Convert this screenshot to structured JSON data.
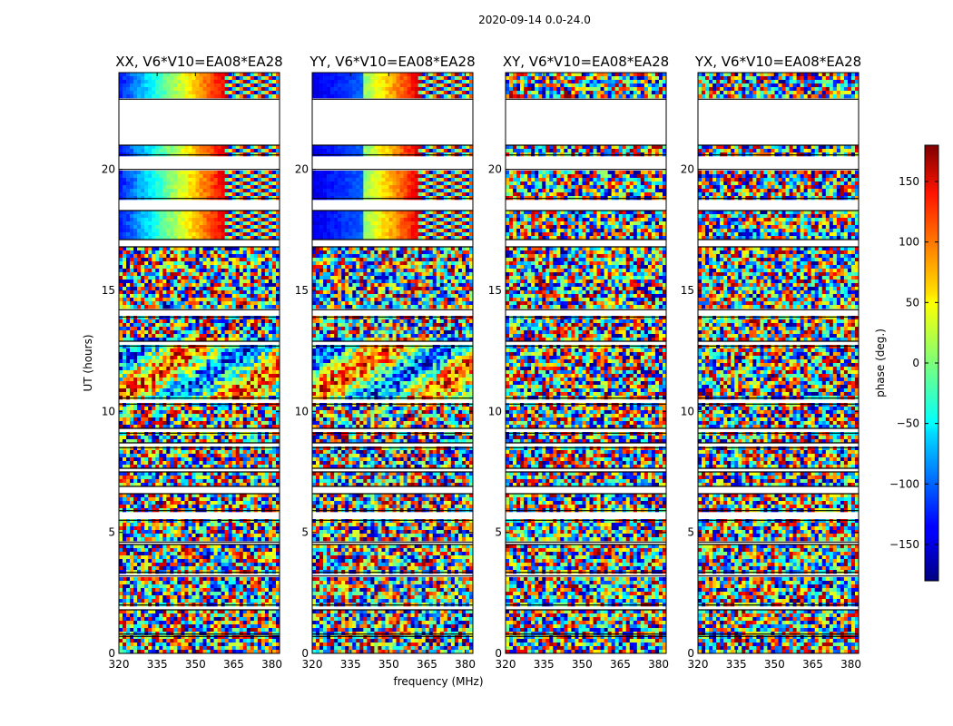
{
  "chart_data": {
    "type": "heatmap",
    "suptitle": "2020-09-14 0.0-24.0",
    "xlabel": "frequency (MHz)",
    "ylabel": "UT (hours)",
    "xlim": [
      320,
      383
    ],
    "ylim": [
      0,
      24
    ],
    "xticks": [
      "320",
      "335",
      "350",
      "365",
      "380"
    ],
    "yticks": [
      "0",
      "5",
      "10",
      "15",
      "20"
    ],
    "colorbar": {
      "label": "phase (deg.)",
      "range": [
        -180,
        180
      ],
      "ticks": [
        "150",
        "100",
        "50",
        "0",
        "−50",
        "−100",
        "−150"
      ],
      "colormap": "jet"
    },
    "panels": [
      {
        "title": "XX, V6*V10=EA08*EA28",
        "coherent_hours": [
          [
            17.0,
            24.0
          ]
        ],
        "partial_hours": [
          [
            10.5,
            13.0
          ]
        ]
      },
      {
        "title": "YY, V6*V10=EA08*EA28",
        "coherent_hours": [
          [
            17.0,
            24.0
          ]
        ],
        "partial_hours": [
          [
            10.5,
            13.0
          ]
        ]
      },
      {
        "title": "XY, V6*V10=EA08*EA28",
        "coherent_hours": [],
        "partial_hours": []
      },
      {
        "title": "YX, V6*V10=EA08*EA28",
        "coherent_hours": [],
        "partial_hours": []
      }
    ],
    "flagged_hours": [
      [
        21.0,
        22.9
      ],
      [
        20.0,
        20.6
      ],
      [
        18.3,
        18.8
      ],
      [
        16.8,
        17.1
      ],
      [
        13.9,
        14.2
      ],
      [
        12.7,
        12.9
      ],
      [
        10.3,
        10.55
      ],
      [
        9.1,
        9.3
      ],
      [
        8.5,
        8.7
      ],
      [
        7.5,
        7.65
      ],
      [
        6.6,
        6.9
      ],
      [
        5.5,
        5.9
      ],
      [
        4.5,
        4.6
      ],
      [
        3.2,
        3.35
      ],
      [
        1.8,
        2.0
      ],
      [
        0.7,
        0.8
      ]
    ]
  }
}
